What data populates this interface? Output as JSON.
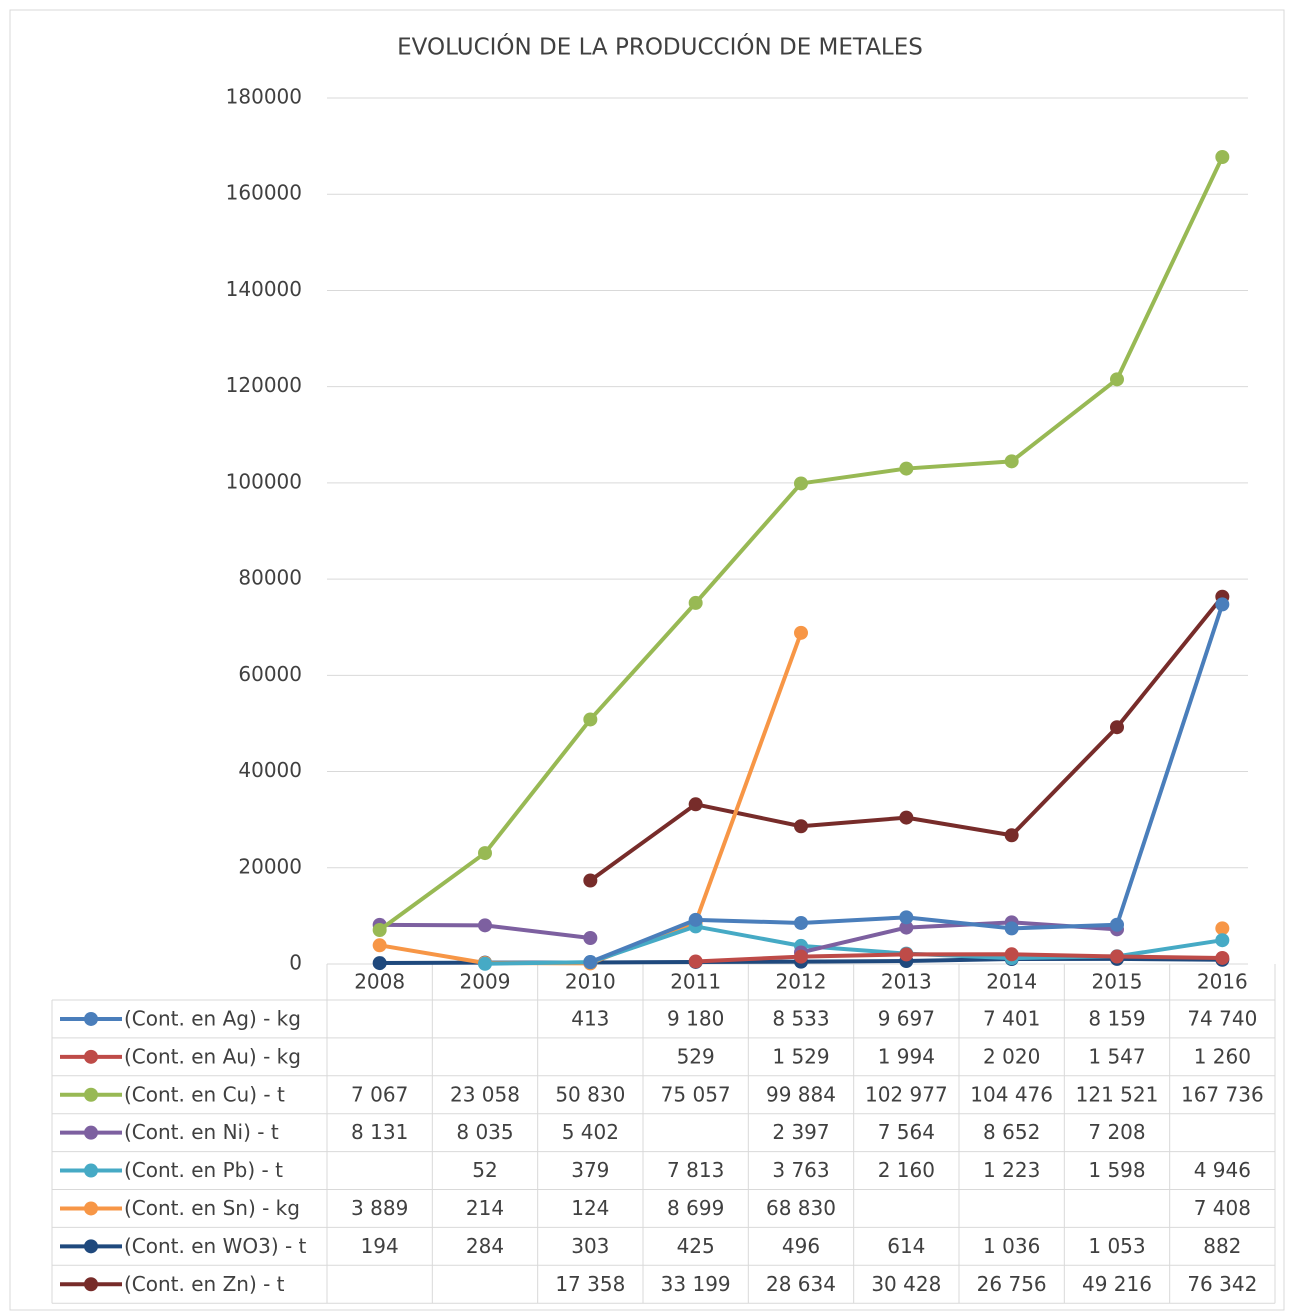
{
  "chart_data": {
    "type": "line",
    "title": "EVOLUCIÓN DE LA PRODUCCIÓN DE METALES",
    "categories": [
      "2008",
      "2009",
      "2010",
      "2011",
      "2012",
      "2013",
      "2014",
      "2015",
      "2016"
    ],
    "ylim": [
      0,
      180000
    ],
    "yticks": [
      0,
      20000,
      40000,
      60000,
      80000,
      100000,
      120000,
      140000,
      160000,
      180000
    ],
    "grid": true,
    "series": [
      {
        "name": "(Cont. en Ag) - kg",
        "color": "#4a7ebb",
        "values": [
          null,
          null,
          413,
          9180,
          8533,
          9697,
          7401,
          8159,
          74740
        ],
        "value_labels": [
          null,
          null,
          "413",
          "9 180",
          "8 533",
          "9 697",
          "7 401",
          "8 159",
          "74 740"
        ]
      },
      {
        "name": "(Cont. en Au) - kg",
        "color": "#be4b48",
        "values": [
          null,
          null,
          null,
          529,
          1529,
          1994,
          2020,
          1547,
          1260
        ],
        "value_labels": [
          null,
          null,
          null,
          "529",
          "1 529",
          "1 994",
          "2 020",
          "1 547",
          "1 260"
        ]
      },
      {
        "name": "(Cont. en Cu) - t",
        "color": "#98b954",
        "values": [
          7067,
          23058,
          50830,
          75057,
          99884,
          102977,
          104476,
          121521,
          167736
        ],
        "value_labels": [
          "7 067",
          "23 058",
          "50 830",
          "75 057",
          "99 884",
          "102 977",
          "104 476",
          "121 521",
          "167 736"
        ]
      },
      {
        "name": "(Cont. en Ni) - t",
        "color": "#7d60a0",
        "values": [
          8131,
          8035,
          5402,
          null,
          2397,
          7564,
          8652,
          7208,
          null
        ],
        "value_labels": [
          "8 131",
          "8 035",
          "5 402",
          null,
          "2 397",
          "7 564",
          "8 652",
          "7 208",
          null
        ]
      },
      {
        "name": "(Cont. en Pb) - t",
        "color": "#46aac5",
        "values": [
          null,
          52,
          379,
          7813,
          3763,
          2160,
          1223,
          1598,
          4946
        ],
        "value_labels": [
          null,
          "52",
          "379",
          "7 813",
          "3 763",
          "2 160",
          "1 223",
          "1 598",
          "4 946"
        ]
      },
      {
        "name": "(Cont. en Sn) - kg",
        "color": "#f79646",
        "values": [
          3889,
          214,
          124,
          8699,
          68830,
          null,
          null,
          null,
          7408
        ],
        "value_labels": [
          "3 889",
          "214",
          "124",
          "8 699",
          "68 830",
          null,
          null,
          null,
          "7 408"
        ]
      },
      {
        "name": "(Cont. en WO3) - t",
        "color": "#1f497d",
        "values": [
          194,
          284,
          303,
          425,
          496,
          614,
          1036,
          1053,
          882
        ],
        "value_labels": [
          "194",
          "284",
          "303",
          "425",
          "496",
          "614",
          "1 036",
          "1 053",
          "882"
        ]
      },
      {
        "name": "(Cont. en Zn) - t",
        "color": "#772c2a",
        "values": [
          null,
          null,
          17358,
          33199,
          28634,
          30428,
          26756,
          49216,
          76342
        ],
        "value_labels": [
          null,
          null,
          "17 358",
          "33 199",
          "28 634",
          "30 428",
          "26 756",
          "49 216",
          "76 342"
        ]
      }
    ]
  }
}
